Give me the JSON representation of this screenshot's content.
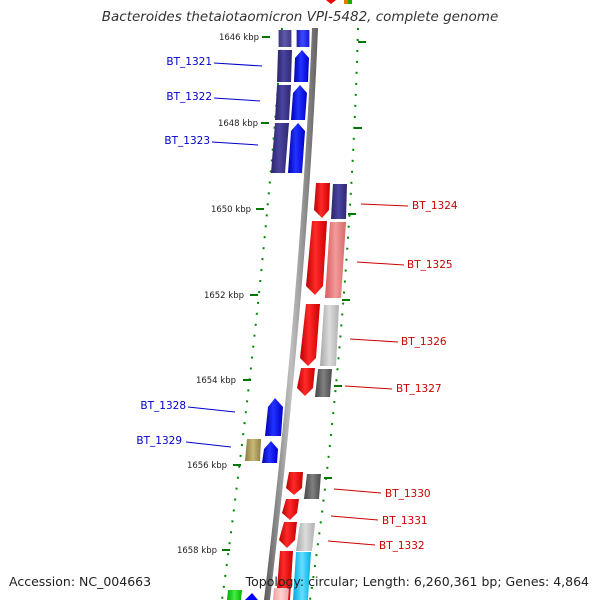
{
  "title": "Bacteroides thetaiotaomicron VPI-5482, complete genome",
  "accession": "Accession: NC_004663",
  "topology": "Topology: circular; Length: 6,260,361 bp; Genes: 4,864",
  "ruler": [
    "1646 kbp",
    "1648 kbp",
    "1650 kbp",
    "1652 kbp",
    "1654 kbp",
    "1656 kbp",
    "1658 kbp"
  ],
  "genes": [
    {
      "name": "BT_1321",
      "strand": "forward",
      "color": "#0000cc"
    },
    {
      "name": "BT_1322",
      "strand": "forward",
      "color": "#0000cc"
    },
    {
      "name": "BT_1323",
      "strand": "forward",
      "color": "#0000cc"
    },
    {
      "name": "BT_1324",
      "strand": "reverse",
      "color": "#cc0000"
    },
    {
      "name": "BT_1325",
      "strand": "reverse",
      "color": "#cc0000"
    },
    {
      "name": "BT_1326",
      "strand": "reverse",
      "color": "#cc0000"
    },
    {
      "name": "BT_1327",
      "strand": "reverse",
      "color": "#cc0000"
    },
    {
      "name": "BT_1328",
      "strand": "forward",
      "color": "#0000cc"
    },
    {
      "name": "BT_1329",
      "strand": "forward",
      "color": "#0000cc"
    },
    {
      "name": "BT_1330",
      "strand": "reverse",
      "color": "#cc0000"
    },
    {
      "name": "BT_1331",
      "strand": "reverse",
      "color": "#cc0000"
    },
    {
      "name": "BT_1332",
      "strand": "reverse",
      "color": "#cc0000"
    }
  ],
  "colors": {
    "forward_gene": "#0000ff",
    "forward_cog": "#3a3380",
    "reverse_gene": "#ff0000",
    "backbone": "#777777",
    "tick": "#007700"
  }
}
